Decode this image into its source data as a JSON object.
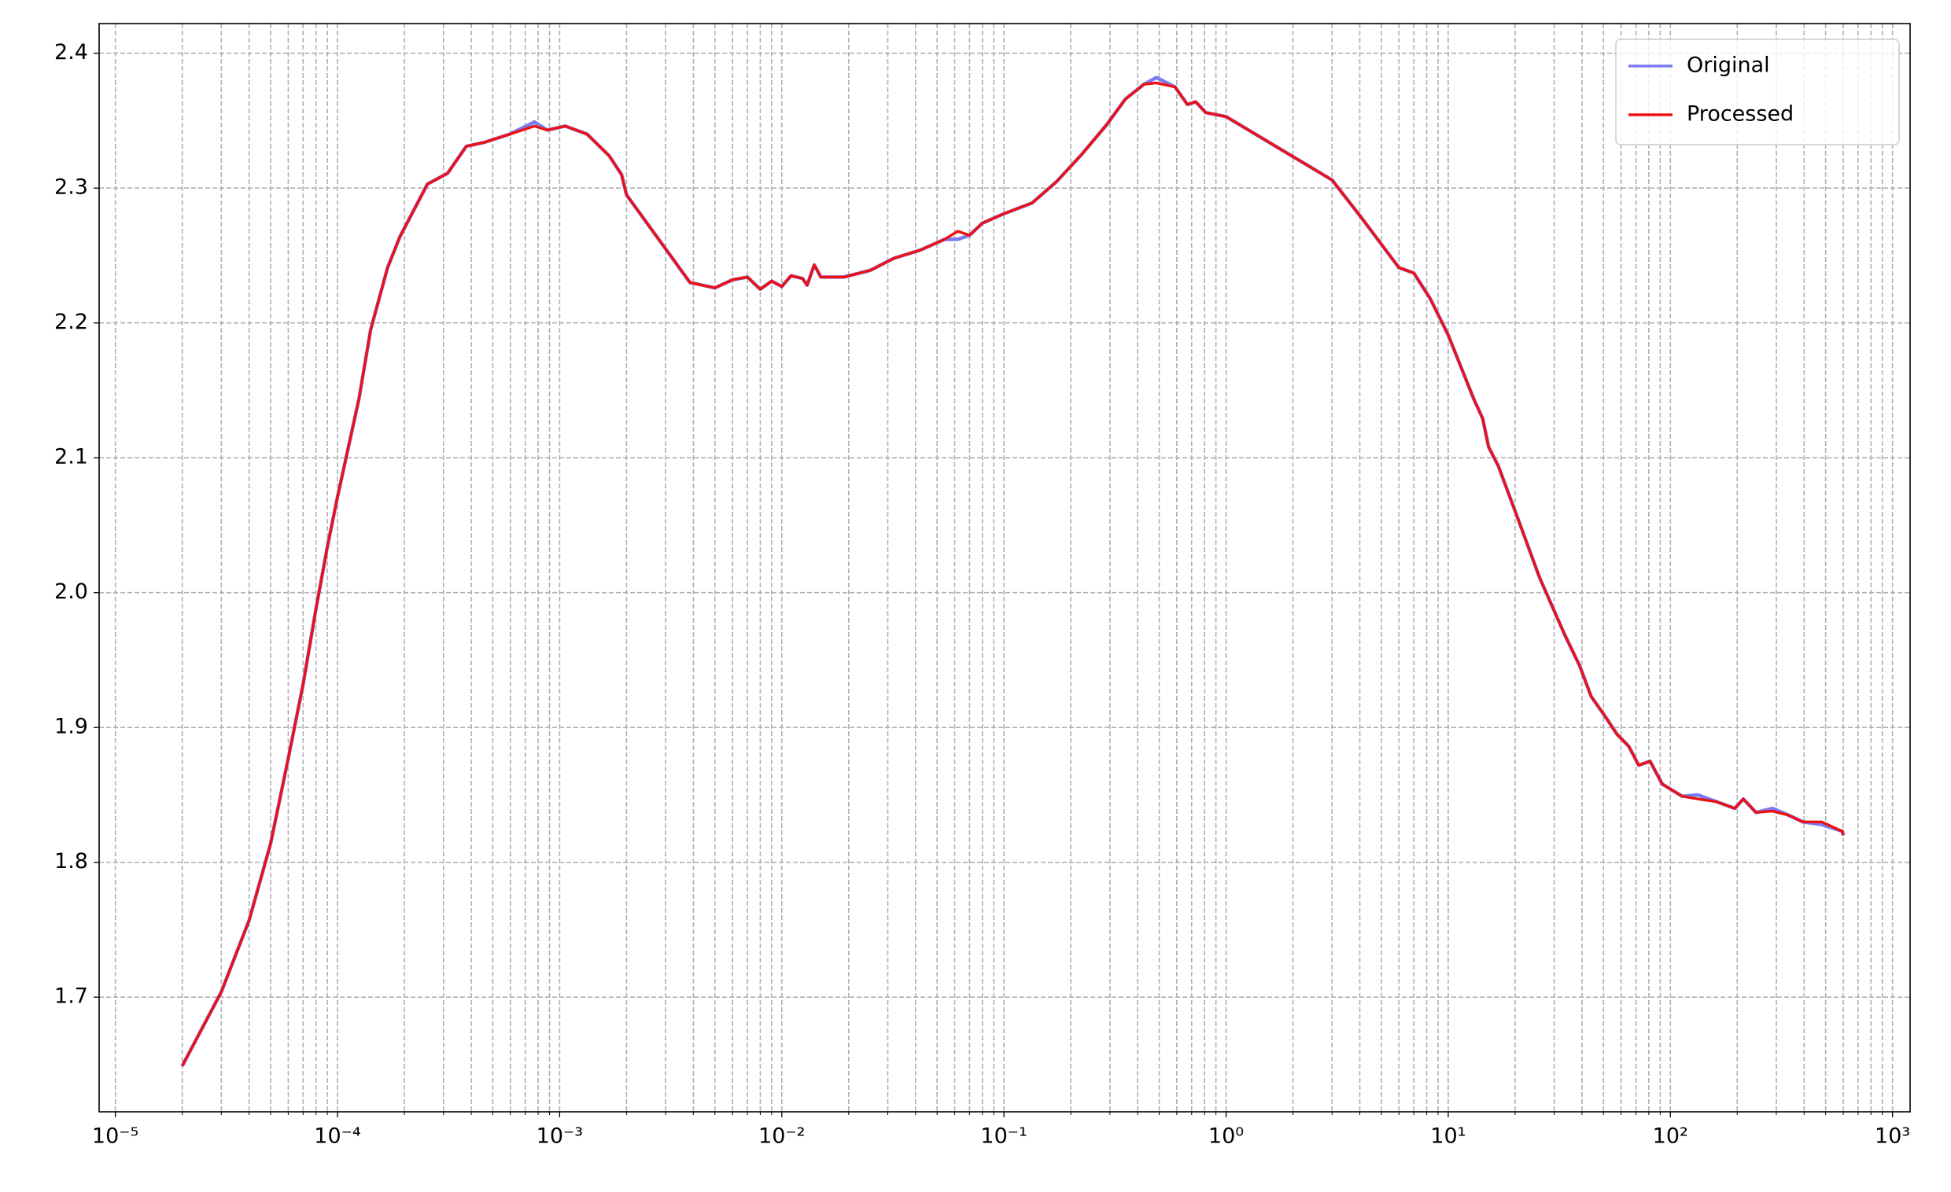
{
  "chart_data": {
    "type": "line",
    "xscale": "log",
    "grid": true,
    "legend": "upper right",
    "xlim": [
      8.45e-06,
      1200
    ],
    "ylim": [
      1.615,
      2.422
    ],
    "xticks": [
      {
        "value": 1e-05,
        "label": "10⁻⁵"
      },
      {
        "value": 0.0001,
        "label": "10⁻⁴"
      },
      {
        "value": 0.001,
        "label": "10⁻³"
      },
      {
        "value": 0.01,
        "label": "10⁻²"
      },
      {
        "value": 0.1,
        "label": "10⁻¹"
      },
      {
        "value": 1,
        "label": "10⁰"
      },
      {
        "value": 10,
        "label": "10¹"
      },
      {
        "value": 100,
        "label": "10²"
      },
      {
        "value": 1000,
        "label": "10³"
      }
    ],
    "yticks": [
      1.7,
      1.8,
      1.9,
      {
        "value": 2,
        "label": "2.0"
      },
      2.1,
      2.2,
      2.3,
      2.4
    ],
    "x": [
      2e-05,
      3e-05,
      4e-05,
      5e-05,
      6e-05,
      7e-05,
      8e-05,
      9e-05,
      0.0001,
      0.000125,
      0.000141,
      0.000168,
      0.000191,
      0.000254,
      0.000313,
      0.00038,
      0.00046,
      0.000596,
      0.00077,
      0.00088,
      0.00106,
      0.00133,
      0.00167,
      0.0019,
      0.002,
      0.00386,
      0.005,
      0.006,
      0.007,
      0.008,
      0.009,
      0.01,
      0.011,
      0.0124,
      0.013,
      0.014,
      0.015,
      0.019,
      0.025,
      0.032,
      0.042,
      0.054,
      0.062,
      0.07,
      0.08,
      0.1,
      0.134,
      0.173,
      0.224,
      0.29,
      0.352,
      0.427,
      0.486,
      0.589,
      0.67,
      0.73,
      0.81,
      1,
      3,
      4.07,
      6,
      7,
      8.3,
      10,
      13,
      14.3,
      15.2,
      16.8,
      20.9,
      25.8,
      33.4,
      39,
      44,
      50.5,
      57.5,
      65,
      72,
      81,
      92,
      113,
      133,
      161,
      195,
      213,
      243,
      288,
      340,
      395,
      480,
      595,
      600
    ],
    "series": [
      {
        "name": "Original",
        "color": "#7b7bf0",
        "values": [
          1.649,
          1.704,
          1.757,
          1.814,
          1.877,
          1.932,
          1.988,
          2.034,
          2.071,
          2.144,
          2.195,
          2.241,
          2.264,
          2.303,
          2.311,
          2.331,
          2.334,
          2.34,
          2.349,
          2.343,
          2.346,
          2.34,
          2.324,
          2.31,
          2.295,
          2.23,
          2.226,
          2.232,
          2.234,
          2.225,
          2.231,
          2.227,
          2.235,
          2.233,
          2.228,
          2.243,
          2.234,
          2.234,
          2.239,
          2.248,
          2.254,
          2.262,
          2.262,
          2.265,
          2.274,
          2.281,
          2.289,
          2.305,
          2.325,
          2.347,
          2.366,
          2.377,
          2.382,
          2.375,
          2.362,
          2.364,
          2.356,
          2.353,
          2.306,
          2.278,
          2.241,
          2.237,
          2.218,
          2.191,
          2.144,
          2.129,
          2.108,
          2.094,
          2.052,
          2.011,
          1.969,
          1.946,
          1.923,
          1.909,
          1.895,
          1.886,
          1.872,
          1.875,
          1.858,
          1.849,
          1.85,
          1.845,
          1.84,
          1.847,
          1.837,
          1.84,
          1.835,
          1.83,
          1.828,
          1.823,
          1.82
        ]
      },
      {
        "name": "Processed",
        "color": "#ee1111",
        "values": [
          1.649,
          1.704,
          1.757,
          1.814,
          1.877,
          1.932,
          1.988,
          2.034,
          2.071,
          2.144,
          2.195,
          2.241,
          2.264,
          2.303,
          2.311,
          2.331,
          2.334,
          2.34,
          2.346,
          2.343,
          2.346,
          2.34,
          2.324,
          2.31,
          2.295,
          2.23,
          2.226,
          2.232,
          2.234,
          2.225,
          2.231,
          2.227,
          2.235,
          2.233,
          2.228,
          2.243,
          2.234,
          2.234,
          2.239,
          2.248,
          2.254,
          2.262,
          2.268,
          2.265,
          2.274,
          2.281,
          2.289,
          2.305,
          2.325,
          2.347,
          2.366,
          2.377,
          2.378,
          2.375,
          2.362,
          2.364,
          2.356,
          2.353,
          2.306,
          2.278,
          2.241,
          2.237,
          2.218,
          2.191,
          2.144,
          2.129,
          2.108,
          2.094,
          2.052,
          2.011,
          1.969,
          1.946,
          1.923,
          1.909,
          1.895,
          1.886,
          1.872,
          1.875,
          1.858,
          1.849,
          1.847,
          1.845,
          1.84,
          1.847,
          1.837,
          1.838,
          1.835,
          1.83,
          1.83,
          1.823,
          1.82
        ]
      }
    ]
  }
}
